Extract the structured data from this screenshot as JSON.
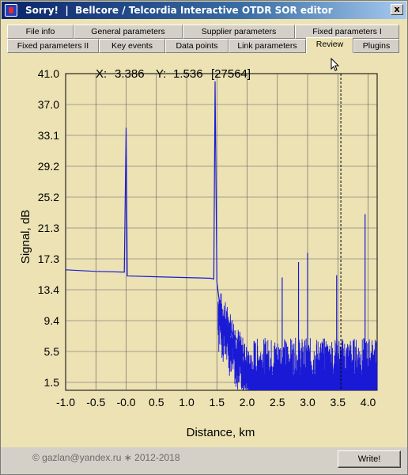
{
  "window": {
    "title": "Sorry!  |  Bellcore / Telcordia Interactive OTDR SOR editor",
    "close_label": "x"
  },
  "tabs": {
    "row_top": [
      "File info",
      "General parameters",
      "Supplier parameters",
      "Fixed parameters I"
    ],
    "row_bottom": [
      "Fixed parameters II",
      "Key events",
      "Data points",
      "Link parameters",
      "Review",
      "Plugins"
    ],
    "active": "Review"
  },
  "readout": {
    "x_label": "X:",
    "x_value": "3.386",
    "y_label": "Y:",
    "y_value": "1.536",
    "index": "[27564]"
  },
  "chart_data": {
    "type": "line",
    "xlabel": "Distance, km",
    "ylabel": "Signal, dB",
    "xlim": [
      -1.0,
      4.15
    ],
    "ylim": [
      0.0,
      41.0
    ],
    "x_ticks": [
      "-1.0",
      "-0.5",
      "-0.0",
      "0.5",
      "1.0",
      "1.5",
      "2.0",
      "2.5",
      "3.0",
      "3.5",
      "4.0"
    ],
    "y_ticks": [
      "41.0",
      "37.0",
      "33.1",
      "29.2",
      "25.2",
      "21.3",
      "17.3",
      "13.4",
      "9.4",
      "5.5",
      "1.5"
    ],
    "grid": true,
    "cursor_x": 3.55,
    "series": [
      {
        "color": "#1a1ad6",
        "x": [
          -1.0,
          -0.5,
          -0.03,
          0.0,
          0.02,
          0.5,
          1.0,
          1.4,
          1.45,
          1.47,
          1.5,
          1.55,
          1.6,
          1.7,
          1.8,
          1.9,
          2.0,
          2.1,
          2.5,
          3.0,
          3.5,
          4.0,
          4.15
        ],
        "y": [
          15.6,
          15.4,
          15.3,
          34.0,
          14.8,
          14.7,
          14.6,
          14.5,
          14.4,
          40.0,
          14.0,
          11.0,
          9.0,
          8.0,
          7.0,
          5.5,
          3.0,
          1.5,
          2.5,
          2.5,
          2.5,
          2.5,
          2.5
        ]
      }
    ]
  },
  "footer": {
    "copyright": "© gazlan@yandex.ru  ∗  2012-2018",
    "write_label": "Write!"
  },
  "colors": {
    "background": "#ece2b4",
    "trace": "#1a1ad6",
    "grid": "#5a5a5a"
  }
}
